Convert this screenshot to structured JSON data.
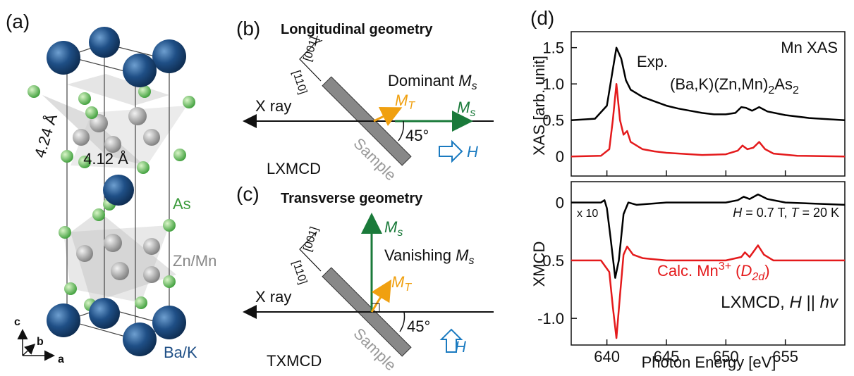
{
  "panel_a": {
    "label": "(a)",
    "lattice_c": "4.24 Å",
    "lattice_a": "4.12 Å",
    "atom_as": "As",
    "atom_zn": "Zn/Mn",
    "atom_ba": "Ba/K",
    "axis_c": "c",
    "axis_b": "b",
    "axis_a": "a"
  },
  "panel_b": {
    "label": "(b)",
    "title": "Longitudinal geometry",
    "dir1": "[001]",
    "dir2": "[110]",
    "beam": "X ray",
    "note": [
      "Dominant ",
      "M",
      "s"
    ],
    "mt": [
      "M",
      "T"
    ],
    "ms": [
      "M",
      "s"
    ],
    "sample": "Sample",
    "angle": "45°",
    "field": "H",
    "mode": "LXMCD"
  },
  "panel_c": {
    "label": "(c)",
    "title": "Transverse geometry",
    "dir1": "[001]",
    "dir2": "[110]",
    "beam": "X ray",
    "note": [
      "Vanishing ",
      "M",
      "s"
    ],
    "mt": [
      "M",
      "T"
    ],
    "ms": [
      "M",
      "s"
    ],
    "sample": "Sample",
    "angle": "45°",
    "field": "H",
    "mode": "TXMCD"
  },
  "panel_d": {
    "label": "(d)"
  },
  "chart_data": [
    {
      "type": "line",
      "title": "Mn XAS",
      "ylabel": "XAS [arb. unit]",
      "annotation": "Exp.",
      "formula": [
        "(Ba,K)(Zn,Mn)",
        "2",
        "As",
        "2"
      ],
      "xlim": [
        637,
        660
      ],
      "ylim": [
        -0.27,
        1.72
      ],
      "yticks": [
        0,
        0.5,
        {
          "value": 1,
          "label": "1.0"
        },
        1.5
      ],
      "series": [
        {
          "color": "#000000",
          "x": [
            637,
            639,
            640,
            640.5,
            640.8,
            641.2,
            641.6,
            642,
            643,
            644,
            645,
            646,
            647,
            648,
            649,
            650,
            650.8,
            651.3,
            651.7,
            652.2,
            652.8,
            653.5,
            655,
            657,
            660
          ],
          "values": [
            0.5,
            0.52,
            0.7,
            1.2,
            1.5,
            1.35,
            1.05,
            0.92,
            0.82,
            0.76,
            0.7,
            0.66,
            0.63,
            0.6,
            0.58,
            0.58,
            0.6,
            0.68,
            0.67,
            0.63,
            0.68,
            0.62,
            0.57,
            0.53,
            0.5
          ]
        },
        {
          "color": "#e41a1c",
          "x": [
            637,
            639.5,
            640.2,
            640.5,
            640.8,
            641.1,
            641.4,
            641.7,
            642,
            643,
            644,
            645,
            648,
            650,
            651,
            651.4,
            651.8,
            652.3,
            652.8,
            653.3,
            654,
            656,
            660
          ],
          "values": [
            0,
            0.01,
            0.1,
            0.5,
            1.0,
            0.5,
            0.3,
            0.35,
            0.2,
            0.1,
            0.07,
            0.05,
            0.02,
            0.03,
            0.08,
            0.15,
            0.1,
            0.12,
            0.2,
            0.1,
            0.04,
            0.01,
            0
          ]
        }
      ]
    },
    {
      "type": "line",
      "ylabel": "XMCD",
      "xlabel": "Photon Energy [eV]",
      "scale_note": "x 10",
      "conditions": [
        "H",
        " = 0.7 T, ",
        "T",
        " = 20 K"
      ],
      "calc": [
        "Calc. Mn",
        "3+",
        " (",
        "D",
        "2d",
        ")"
      ],
      "mode": [
        "LXMCD, ",
        "H",
        " || ",
        "hv"
      ],
      "xlim": [
        637,
        660
      ],
      "ylim": [
        -1.23,
        0.18
      ],
      "xticks": [
        640,
        645,
        650,
        655
      ],
      "yticks": [
        0,
        -0.5,
        {
          "value": -1,
          "label": "-1.0"
        }
      ],
      "series": [
        {
          "color": "#000000",
          "x": [
            637,
            639.5,
            639.8,
            640,
            640.3,
            640.7,
            641,
            641.4,
            641.8,
            642.5,
            645,
            650,
            651,
            651.5,
            652,
            652.7,
            653.5,
            655,
            660
          ],
          "values": [
            0,
            0,
            0.02,
            -0.05,
            -0.3,
            -0.65,
            -0.5,
            -0.1,
            0,
            -0.02,
            0,
            0,
            0.02,
            0.05,
            0.03,
            0.07,
            0.03,
            0,
            -0.02
          ]
        },
        {
          "color": "#e41a1c",
          "x": [
            637,
            639.5,
            640.2,
            640.5,
            640.8,
            641.1,
            641.4,
            641.7,
            642.2,
            643,
            645,
            650,
            651.3,
            651.6,
            652,
            652.7,
            653.2,
            654,
            660
          ],
          "values": [
            -0.5,
            -0.5,
            -0.6,
            -0.9,
            -1.17,
            -0.8,
            -0.45,
            -0.38,
            -0.45,
            -0.48,
            -0.5,
            -0.5,
            -0.47,
            -0.43,
            -0.47,
            -0.37,
            -0.45,
            -0.5,
            -0.5
          ]
        }
      ]
    }
  ]
}
